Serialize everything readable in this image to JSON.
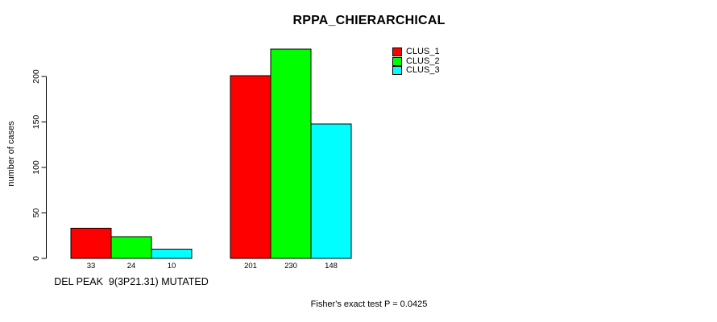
{
  "chart_data": {
    "type": "bar",
    "title": "RPPA_CHIERARCHICAL",
    "xlabel": "",
    "ylabel": "number of cases",
    "categories": [
      "DEL PEAK  9(3P21.31) MUTATED",
      ""
    ],
    "series": [
      {
        "name": "CLUS_1",
        "color": "#ff0000",
        "values": [
          33,
          201
        ]
      },
      {
        "name": "CLUS_2",
        "color": "#00ff00",
        "values": [
          24,
          230
        ]
      },
      {
        "name": "CLUS_3",
        "color": "#00ffff",
        "values": [
          10,
          148
        ]
      }
    ],
    "value_labels": [
      [
        "33",
        "24",
        "10"
      ],
      [
        "201",
        "230",
        "148"
      ]
    ],
    "yticks": [
      0,
      50,
      100,
      150,
      200
    ],
    "ylim": [
      0,
      232
    ],
    "grid": false,
    "legend_position": "top-right",
    "bar_border_color": "#000000",
    "axis_color": "#000000",
    "annotation": "Fisher's exact test P = 0.0425"
  }
}
